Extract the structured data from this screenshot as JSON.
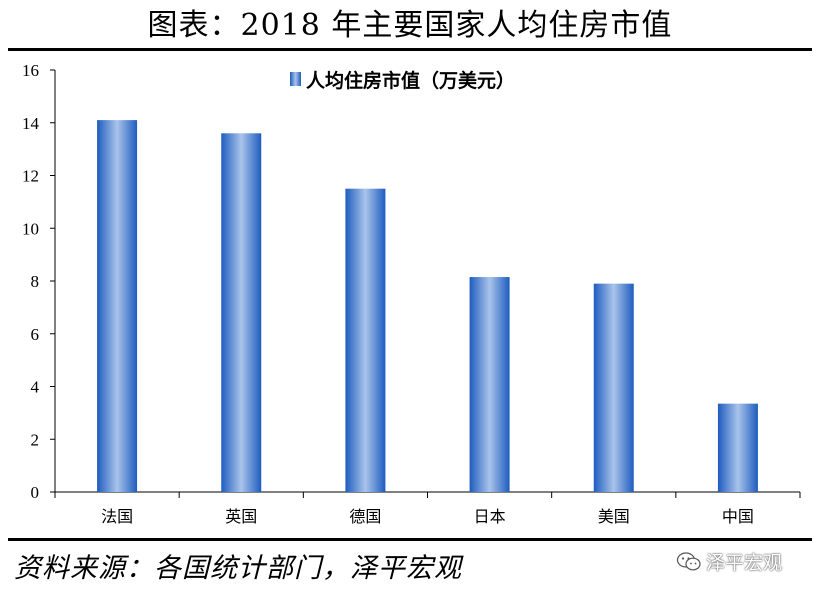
{
  "header": {
    "title": "图表：2018 年主要国家人均住房市值"
  },
  "footer": {
    "source": "资料来源：各国统计部门，泽平宏观",
    "watermark": "泽平宏观",
    "watermark_icon": "wechat-icon"
  },
  "colors": {
    "bar_dark": "#1f5cbf",
    "bar_light": "#a9c4ea",
    "axis": "#000000"
  },
  "chart_data": {
    "type": "bar",
    "title": "",
    "xlabel": "",
    "ylabel": "",
    "categories": [
      "法国",
      "英国",
      "德国",
      "日本",
      "美国",
      "中国"
    ],
    "series": [
      {
        "name": "人均住房市值（万美元）",
        "values": [
          14.1,
          13.6,
          11.5,
          8.15,
          7.9,
          3.35
        ]
      }
    ],
    "ylim": [
      0,
      16
    ],
    "yticks": [
      0,
      2,
      4,
      6,
      8,
      10,
      12,
      14,
      16
    ],
    "grid": false,
    "legend_position": "top-center"
  }
}
